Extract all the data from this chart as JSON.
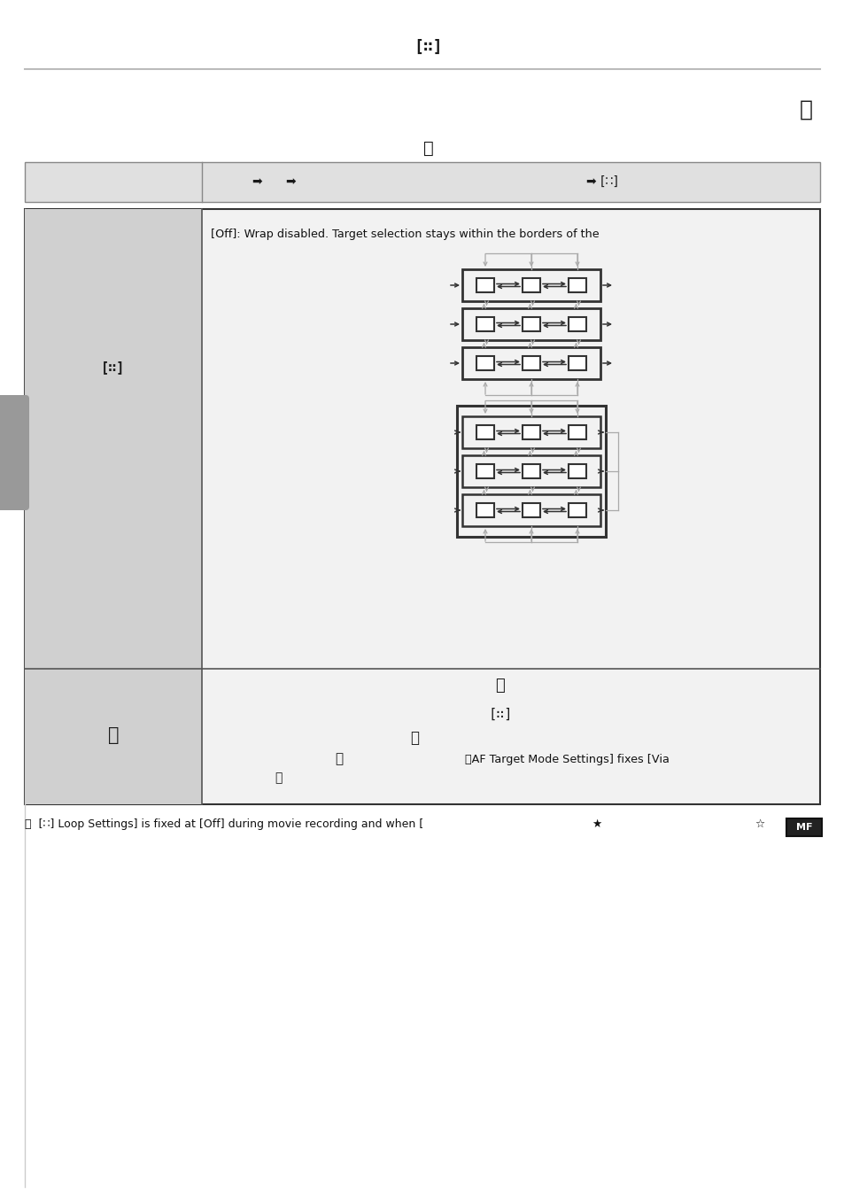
{
  "bg_color": "#ffffff",
  "header_line_color": "#bbbbbb",
  "nav_bg": "#e0e0e0",
  "left_col_bg": "#d0d0d0",
  "right_col_bg": "#f2f2f2",
  "sidebar_color": "#999999",
  "off_text": "[Off]: Wrap disabled. Target selection stays within the borders of the",
  "footnote_text": "ⓘ  [∷] Loop Settings] is fixed at [Off] during movie recording and when [",
  "dark_arrow": "#333333",
  "light_arrow": "#aaaaaa",
  "box_border": "#222222",
  "row_border": "#333333",
  "outer_border_wrap": "#333333"
}
